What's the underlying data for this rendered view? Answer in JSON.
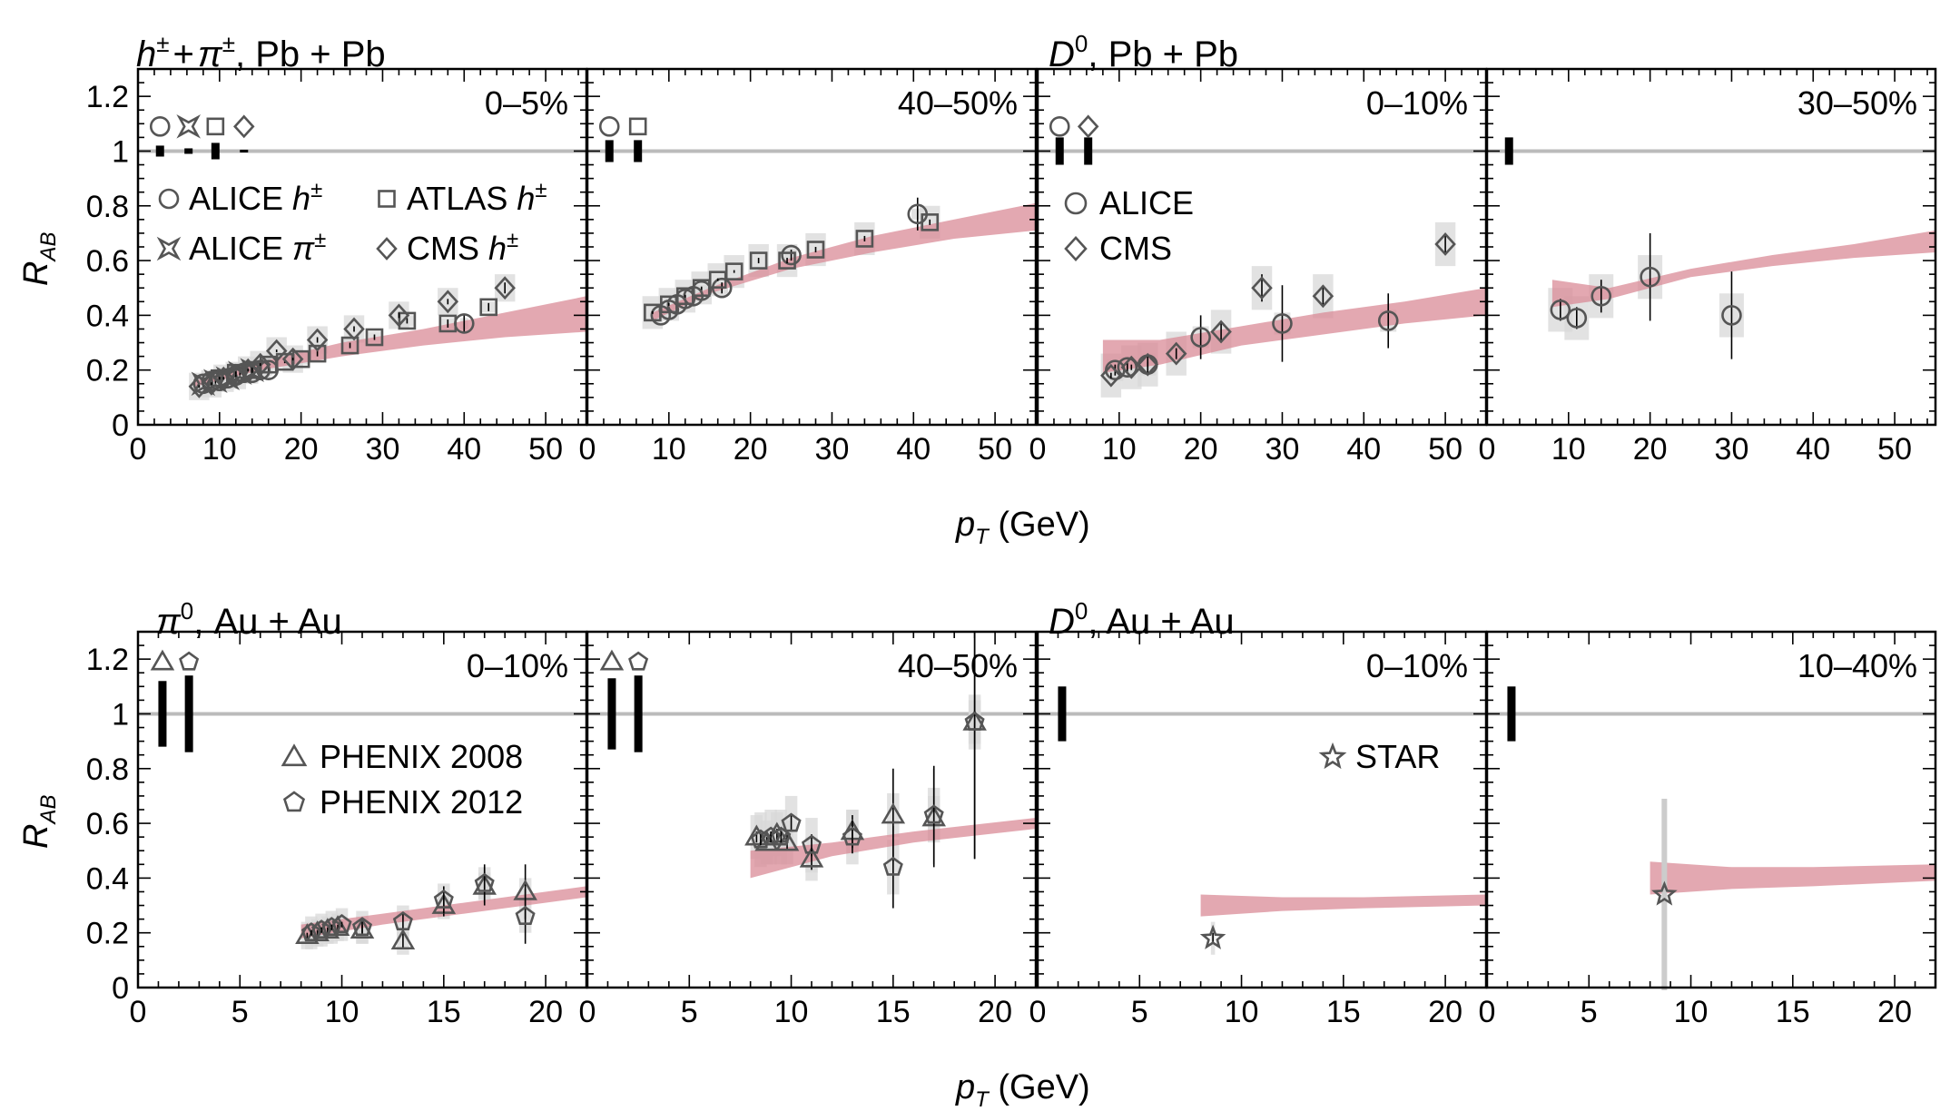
{
  "figure": {
    "x_axis_label_var": "p",
    "x_axis_label_sub": "T",
    "x_axis_label_unit": " (GeV)",
    "y_axis_label_var": "R",
    "y_axis_label_sub": "AB"
  },
  "rows": [
    {
      "titles": [
        {
          "parts": [
            "h",
            "±",
            "+",
            "π",
            "±",
            ", Pb + Pb"
          ],
          "kind": "hpi"
        },
        {
          "parts": [
            "D",
            "0",
            ", Pb + Pb"
          ],
          "kind": "d"
        }
      ]
    },
    {
      "titles": [
        {
          "parts": [
            "π",
            "0",
            ", Au + Au"
          ],
          "kind": "pi0"
        },
        {
          "parts": [
            "D",
            "0",
            ", Au + Au"
          ],
          "kind": "d"
        }
      ]
    }
  ],
  "colors": {
    "band": "#d98b97",
    "marker": "#555555",
    "ref_line": "#bbbbbb",
    "syst_box": "#d8d8d8",
    "axis": "#000000"
  },
  "chart_data": [
    {
      "type": "scatter",
      "panel": "top-1",
      "centrality": "0–5%",
      "xlim": [
        0,
        55
      ],
      "ylim": [
        0,
        1.3
      ],
      "xticks": [
        0,
        10,
        20,
        30,
        40,
        50
      ],
      "yticks": [
        0,
        0.2,
        0.4,
        0.6,
        0.8,
        1,
        1.2
      ],
      "ytick_labels": [
        "0",
        "0.2",
        "0.4",
        "0.6",
        "0.8",
        "1",
        "1.2"
      ],
      "norm_unc": [
        {
          "marker": "circle",
          "x": 2.7,
          "y_lo": 0.98,
          "y_hi": 1.02
        },
        {
          "marker": "star4",
          "x": 6.2,
          "y_lo": 0.99,
          "y_hi": 1.01
        },
        {
          "marker": "square",
          "x": 9.5,
          "y_lo": 0.97,
          "y_hi": 1.03
        },
        {
          "marker": "diamond",
          "x": 13,
          "y_lo": 0.995,
          "y_hi": 1.005
        }
      ],
      "legend": [
        {
          "marker": "circle",
          "pre": "ALICE ",
          "var": "h",
          "sup": "±"
        },
        {
          "marker": "square",
          "pre": "ATLAS ",
          "var": "h",
          "sup": "±"
        },
        {
          "marker": "star4",
          "pre": "ALICE ",
          "var": "π",
          "sup": "±"
        },
        {
          "marker": "diamond",
          "pre": "CMS ",
          "var": "h",
          "sup": "±"
        }
      ],
      "band": {
        "x": [
          7,
          15,
          25,
          35,
          45,
          55
        ],
        "lo": [
          0.14,
          0.2,
          0.25,
          0.29,
          0.32,
          0.34
        ],
        "hi": [
          0.16,
          0.23,
          0.3,
          0.35,
          0.41,
          0.47
        ]
      },
      "series": [
        {
          "name": "ALICE h±",
          "marker": "circle",
          "x": [
            8,
            9,
            10,
            11,
            12,
            13,
            14,
            15,
            16,
            40
          ],
          "y": [
            0.15,
            0.16,
            0.16,
            0.17,
            0.18,
            0.19,
            0.19,
            0.2,
            0.2,
            0.37
          ],
          "err": [
            0.01,
            0.01,
            0.01,
            0.01,
            0.01,
            0.01,
            0.01,
            0.01,
            0.01,
            0.03
          ],
          "sys_w": 1,
          "sys_h": 0.02
        },
        {
          "name": "ALICE π±",
          "marker": "star4",
          "x": [
            8,
            9.5,
            11,
            12.5,
            14
          ],
          "y": [
            0.15,
            0.16,
            0.17,
            0.19,
            0.2
          ],
          "err": [
            0.01,
            0.01,
            0.01,
            0.01,
            0.01
          ],
          "sys_w": 1,
          "sys_h": 0.02
        },
        {
          "name": "ATLAS h±",
          "marker": "square",
          "x": [
            10,
            12,
            14,
            16,
            18,
            20,
            22,
            26,
            29,
            33,
            38,
            43
          ],
          "y": [
            0.17,
            0.19,
            0.2,
            0.22,
            0.23,
            0.24,
            0.26,
            0.29,
            0.32,
            0.38,
            0.37,
            0.43
          ],
          "err": [
            0.005,
            0.005,
            0.005,
            0.005,
            0.005,
            0.005,
            0.01,
            0.01,
            0.01,
            0.01,
            0.015,
            0.015
          ],
          "sys_w": 2,
          "sys_h": 0.02
        },
        {
          "name": "CMS h±",
          "marker": "diamond",
          "x": [
            7.5,
            9,
            10.5,
            12,
            13.5,
            15,
            17,
            19,
            22,
            26.5,
            32,
            38,
            45
          ],
          "y": [
            0.14,
            0.15,
            0.17,
            0.18,
            0.2,
            0.22,
            0.27,
            0.24,
            0.31,
            0.35,
            0.4,
            0.45,
            0.5
          ],
          "err": [
            0.005,
            0.005,
            0.005,
            0.005,
            0.005,
            0.005,
            0.005,
            0.005,
            0.01,
            0.01,
            0.01,
            0.01,
            0.02
          ],
          "sys_w": 2.5,
          "sys_h": 0.05
        }
      ]
    },
    {
      "type": "scatter",
      "panel": "top-2",
      "centrality": "40–50%",
      "xlim": [
        0,
        55
      ],
      "ylim": [
        0,
        1.3
      ],
      "xticks": [
        0,
        10,
        20,
        30,
        40,
        50
      ],
      "yticks": [
        0,
        0.2,
        0.4,
        0.6,
        0.8,
        1,
        1.2
      ],
      "norm_unc": [
        {
          "marker": "circle",
          "x": 2.7,
          "y_lo": 0.96,
          "y_hi": 1.04
        },
        {
          "marker": "square",
          "x": 6.2,
          "y_lo": 0.96,
          "y_hi": 1.04
        }
      ],
      "band": {
        "x": [
          8,
          15,
          25,
          35,
          45,
          55
        ],
        "lo": [
          0.38,
          0.48,
          0.57,
          0.63,
          0.68,
          0.71
        ],
        "hi": [
          0.41,
          0.5,
          0.61,
          0.69,
          0.75,
          0.81
        ]
      },
      "series": [
        {
          "name": "ALICE h±",
          "marker": "circle",
          "x": [
            9,
            10,
            11,
            12,
            13,
            14,
            16.5,
            25,
            40.5
          ],
          "y": [
            0.4,
            0.42,
            0.44,
            0.46,
            0.47,
            0.49,
            0.5,
            0.62,
            0.77
          ],
          "err": [
            0.01,
            0.01,
            0.01,
            0.01,
            0.01,
            0.01,
            0.02,
            0.02,
            0.06
          ],
          "sys_w": 1.5,
          "sys_h": 0.02
        },
        {
          "name": "ATLAS h±",
          "marker": "square",
          "x": [
            8,
            10,
            12,
            14,
            16,
            18,
            21,
            24.5,
            28,
            34,
            42
          ],
          "y": [
            0.41,
            0.44,
            0.47,
            0.5,
            0.53,
            0.56,
            0.6,
            0.6,
            0.64,
            0.68,
            0.74
          ],
          "err": [
            0.005,
            0.005,
            0.005,
            0.005,
            0.005,
            0.005,
            0.01,
            0.01,
            0.01,
            0.01,
            0.01
          ],
          "sys_w": 2.5,
          "sys_h": 0.06
        }
      ]
    },
    {
      "type": "scatter",
      "panel": "top-3",
      "centrality": "0–10%",
      "xlim": [
        0,
        55
      ],
      "ylim": [
        0,
        1.3
      ],
      "xticks": [
        0,
        10,
        20,
        30,
        40,
        50
      ],
      "yticks": [
        0,
        0.2,
        0.4,
        0.6,
        0.8,
        1,
        1.2
      ],
      "norm_unc": [
        {
          "marker": "circle",
          "x": 2.7,
          "y_lo": 0.95,
          "y_hi": 1.05
        },
        {
          "marker": "diamond",
          "x": 6.2,
          "y_lo": 0.95,
          "y_hi": 1.05
        }
      ],
      "legend": [
        {
          "marker": "circle",
          "pre": "ALICE",
          "var": "",
          "sup": ""
        },
        {
          "marker": "diamond",
          "pre": "CMS",
          "var": "",
          "sup": ""
        }
      ],
      "band": {
        "x": [
          8,
          15,
          25,
          35,
          45,
          55
        ],
        "lo": [
          0.19,
          0.22,
          0.29,
          0.33,
          0.37,
          0.4
        ],
        "hi": [
          0.31,
          0.31,
          0.36,
          0.41,
          0.45,
          0.5
        ]
      },
      "series": [
        {
          "name": "ALICE",
          "marker": "circle",
          "x": [
            9.5,
            11,
            13.5,
            20,
            30,
            43
          ],
          "y": [
            0.2,
            0.21,
            0.22,
            0.32,
            0.37,
            0.38
          ],
          "err": [
            0.02,
            0.02,
            0.03,
            0.08,
            0.14,
            0.1
          ],
          "sys_w": 2,
          "sys_h": 0.04
        },
        {
          "name": "CMS",
          "marker": "diamond",
          "x": [
            9,
            11.5,
            13.5,
            17,
            22.5,
            27.5,
            35,
            50
          ],
          "y": [
            0.18,
            0.21,
            0.22,
            0.26,
            0.34,
            0.5,
            0.47,
            0.66
          ],
          "err": [
            0.01,
            0.01,
            0.01,
            0.02,
            0.04,
            0.05,
            0.04,
            0.03
          ],
          "sys_w": 2.5,
          "sys_h": 0.08
        }
      ]
    },
    {
      "type": "scatter",
      "panel": "top-4",
      "centrality": "30–50%",
      "xlim": [
        0,
        55
      ],
      "ylim": [
        0,
        1.3
      ],
      "xticks": [
        0,
        10,
        20,
        30,
        40,
        50
      ],
      "yticks": [
        0,
        0.2,
        0.4,
        0.6,
        0.8,
        1,
        1.2
      ],
      "norm_unc": [
        {
          "marker": "none",
          "x": 2.7,
          "y_lo": 0.95,
          "y_hi": 1.05
        }
      ],
      "band": {
        "x": [
          8,
          15,
          25,
          35,
          45,
          55
        ],
        "lo": [
          0.43,
          0.46,
          0.54,
          0.58,
          0.61,
          0.63
        ],
        "hi": [
          0.53,
          0.5,
          0.57,
          0.62,
          0.66,
          0.71
        ]
      },
      "series": [
        {
          "name": "ALICE",
          "marker": "circle",
          "x": [
            9,
            11,
            14,
            20,
            30
          ],
          "y": [
            0.42,
            0.39,
            0.47,
            0.54,
            0.4
          ],
          "err": [
            0.04,
            0.04,
            0.06,
            0.16,
            0.16
          ],
          "sys_w": 3,
          "sys_h": 0.08
        }
      ]
    },
    {
      "type": "scatter",
      "panel": "bottom-1",
      "centrality": "0–10%",
      "xlim": [
        0,
        22
      ],
      "ylim": [
        0,
        1.3
      ],
      "xticks": [
        0,
        5,
        10,
        15,
        20
      ],
      "yticks": [
        0,
        0.2,
        0.4,
        0.6,
        0.8,
        1,
        1.2
      ],
      "ytick_labels": [
        "0",
        "0.2",
        "0.4",
        "0.6",
        "0.8",
        "1",
        "1.2"
      ],
      "norm_unc": [
        {
          "marker": "triangle",
          "x": 1.2,
          "y_lo": 0.88,
          "y_hi": 1.12
        },
        {
          "marker": "pentagon",
          "x": 2.5,
          "y_lo": 0.86,
          "y_hi": 1.14
        }
      ],
      "legend": [
        {
          "marker": "triangle",
          "pre": "PHENIX 2008",
          "var": "",
          "sup": ""
        },
        {
          "marker": "pentagon",
          "pre": "PHENIX 2012",
          "var": "",
          "sup": ""
        }
      ],
      "band": {
        "x": [
          8,
          12,
          16,
          22
        ],
        "lo": [
          0.18,
          0.23,
          0.27,
          0.33
        ],
        "hi": [
          0.23,
          0.27,
          0.31,
          0.37
        ]
      },
      "series": [
        {
          "name": "PHENIX 2008",
          "marker": "triangle",
          "x": [
            8.3,
            8.8,
            9.3,
            9.8,
            11,
            13,
            15,
            17,
            19
          ],
          "y": [
            0.19,
            0.2,
            0.21,
            0.22,
            0.21,
            0.17,
            0.3,
            0.37,
            0.35
          ],
          "err": [
            0.01,
            0.01,
            0.01,
            0.01,
            0.02,
            0.03,
            0.04,
            0.07,
            0.1
          ],
          "sys_w": 0.6,
          "sys_h": 0.05
        },
        {
          "name": "PHENIX 2012",
          "marker": "pentagon",
          "x": [
            8.5,
            9,
            9.5,
            10,
            11,
            13,
            15,
            17,
            19
          ],
          "y": [
            0.2,
            0.21,
            0.22,
            0.23,
            0.22,
            0.24,
            0.32,
            0.38,
            0.26
          ],
          "err": [
            0.01,
            0.01,
            0.01,
            0.01,
            0.02,
            0.03,
            0.05,
            0.07,
            0.1
          ],
          "sys_w": 0.6,
          "sys_h": 0.06
        }
      ]
    },
    {
      "type": "scatter",
      "panel": "bottom-2",
      "centrality": "40–50%",
      "xlim": [
        0,
        22
      ],
      "ylim": [
        0,
        1.3
      ],
      "xticks": [
        0,
        5,
        10,
        15,
        20
      ],
      "yticks": [
        0,
        0.2,
        0.4,
        0.6,
        0.8,
        1,
        1.2
      ],
      "norm_unc": [
        {
          "marker": "triangle",
          "x": 1.2,
          "y_lo": 0.87,
          "y_hi": 1.13
        },
        {
          "marker": "pentagon",
          "x": 2.5,
          "y_lo": 0.86,
          "y_hi": 1.14
        }
      ],
      "band": {
        "x": [
          8,
          12,
          16,
          22
        ],
        "lo": [
          0.4,
          0.48,
          0.53,
          0.58
        ],
        "hi": [
          0.5,
          0.53,
          0.57,
          0.62
        ]
      },
      "series": [
        {
          "name": "PHENIX 2008",
          "marker": "triangle",
          "x": [
            8.3,
            8.8,
            9.3,
            9.8,
            11,
            13,
            15,
            17,
            19
          ],
          "y": [
            0.55,
            0.53,
            0.56,
            0.53,
            0.47,
            0.57,
            0.63,
            0.62,
            0.97
          ],
          "err": [
            0.02,
            0.02,
            0.02,
            0.03,
            0.04,
            0.06,
            0.17,
            0.18,
            0.5
          ],
          "sys_w": 0.6,
          "sys_h": 0.08
        },
        {
          "name": "PHENIX 2012",
          "marker": "pentagon",
          "x": [
            8.5,
            9,
            9.5,
            10,
            11,
            13,
            15,
            17,
            19
          ],
          "y": [
            0.54,
            0.55,
            0.55,
            0.6,
            0.52,
            0.55,
            0.44,
            0.63,
            0.97
          ],
          "err": [
            0.02,
            0.02,
            0.02,
            0.03,
            0.04,
            0.06,
            0.15,
            0.18,
            0.5
          ],
          "sys_w": 0.6,
          "sys_h": 0.1
        }
      ]
    },
    {
      "type": "scatter",
      "panel": "bottom-3",
      "centrality": "0–10%",
      "xlim": [
        0,
        22
      ],
      "ylim": [
        0,
        1.3
      ],
      "xticks": [
        0,
        5,
        10,
        15,
        20
      ],
      "yticks": [
        0,
        0.2,
        0.4,
        0.6,
        0.8,
        1,
        1.2
      ],
      "norm_unc": [
        {
          "marker": "none",
          "x": 1.2,
          "y_lo": 0.9,
          "y_hi": 1.1
        }
      ],
      "legend": [
        {
          "marker": "star5",
          "pre": "STAR",
          "var": "",
          "sup": ""
        }
      ],
      "band": {
        "x": [
          8,
          12,
          16,
          22
        ],
        "lo": [
          0.26,
          0.28,
          0.29,
          0.3
        ],
        "hi": [
          0.34,
          0.33,
          0.33,
          0.34
        ]
      },
      "series": [
        {
          "name": "STAR",
          "marker": "star5",
          "x": [
            8.6
          ],
          "y": [
            0.18
          ],
          "err": [
            0.02
          ],
          "sys_w": 0.2,
          "sys_h": 0.06
        }
      ]
    },
    {
      "type": "scatter",
      "panel": "bottom-4",
      "centrality": "10–40%",
      "xlim": [
        0,
        22
      ],
      "ylim": [
        0,
        1.3
      ],
      "xticks": [
        0,
        5,
        10,
        15,
        20
      ],
      "yticks": [
        0,
        0.2,
        0.4,
        0.6,
        0.8,
        1,
        1.2
      ],
      "norm_unc": [
        {
          "marker": "none",
          "x": 1.2,
          "y_lo": 0.9,
          "y_hi": 1.1
        }
      ],
      "band": {
        "x": [
          8,
          12,
          16,
          22
        ],
        "lo": [
          0.34,
          0.36,
          0.37,
          0.39
        ],
        "hi": [
          0.46,
          0.44,
          0.44,
          0.45
        ]
      },
      "series": [
        {
          "name": "STAR",
          "marker": "star5",
          "x": [
            8.7
          ],
          "y": [
            0.34
          ],
          "err": [
            0.35
          ],
          "sys_w": 0.2,
          "sys_h": 0.06,
          "err_gray": true
        }
      ]
    }
  ]
}
